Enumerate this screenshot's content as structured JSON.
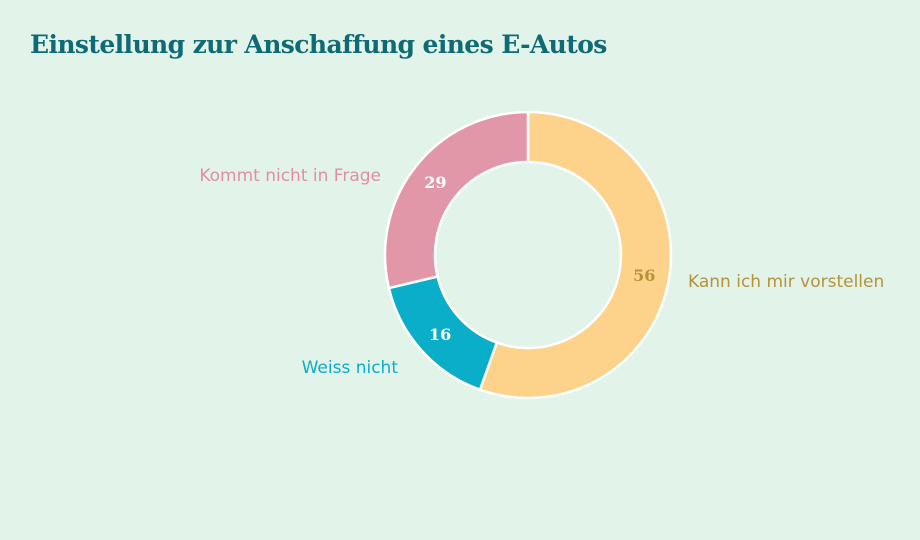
{
  "title": "Einstellung zur Anschaffung eines E-Autos",
  "chart_data": {
    "type": "pie",
    "title": "Einstellung zur Anschaffung eines E-Autos",
    "categories": [
      "Kann ich mir vorstellen",
      "Weiss nicht",
      "Kommt nicht in Frage"
    ],
    "values": [
      56,
      16,
      29
    ],
    "colors": [
      "#fdd38b",
      "#0aaec8",
      "#e297a9"
    ],
    "label_colors": [
      "#b5933a",
      "#0aaec8",
      "#e08fa2"
    ],
    "value_label_colors": [
      "#b5933a",
      "#ffffff",
      "#ffffff"
    ],
    "donut": true,
    "legend": "none"
  }
}
